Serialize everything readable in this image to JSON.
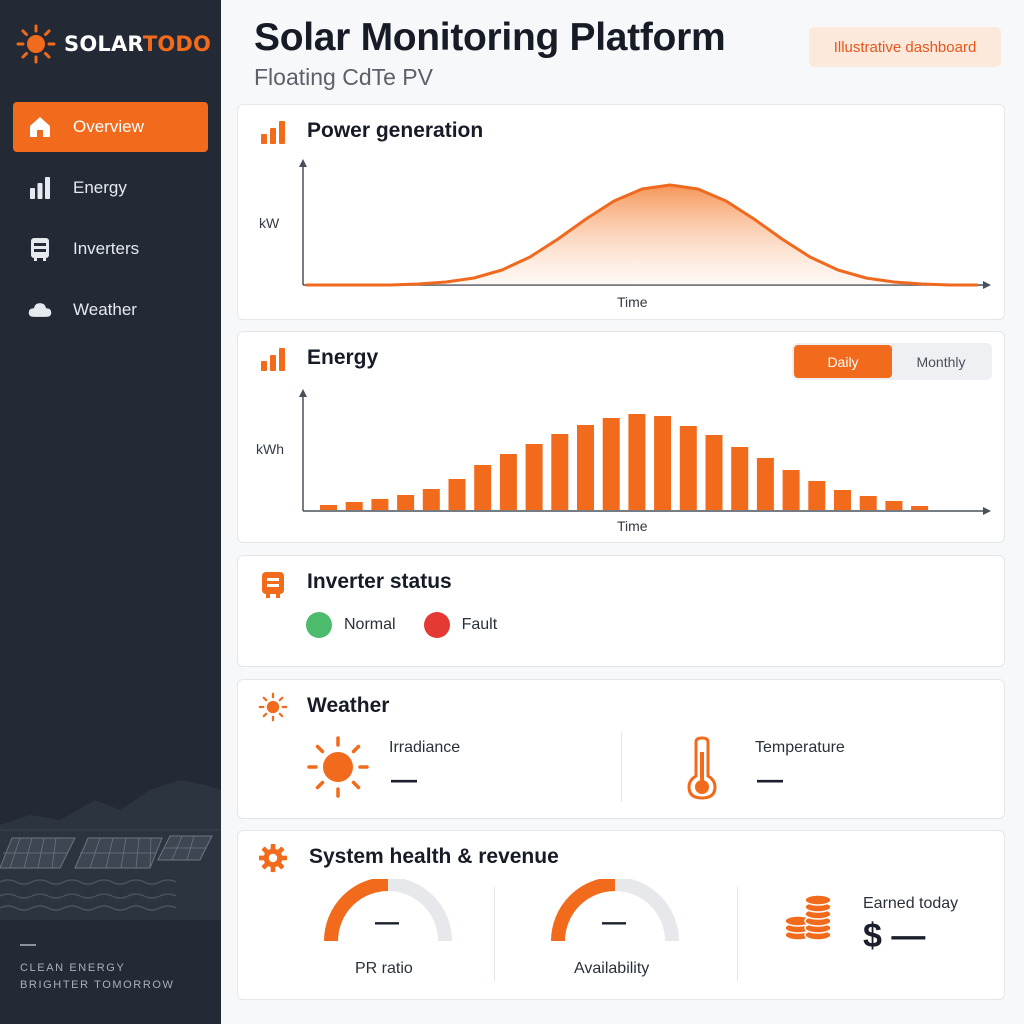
{
  "app": {
    "brand_left": "SOLAR",
    "brand_right": "TODO",
    "accent_color": "#f26a1b"
  },
  "sidebar": {
    "items": [
      {
        "label": "Overview",
        "icon": "home-icon",
        "active": true
      },
      {
        "label": "Energy",
        "icon": "bar-chart-icon",
        "active": false
      },
      {
        "label": "Inverters",
        "icon": "inverter-icon",
        "active": false
      },
      {
        "label": "Weather",
        "icon": "cloud-icon",
        "active": false
      }
    ],
    "tagline_line1": "CLEAN ENERGY",
    "tagline_line2": "BRIGHTER TOMORROW"
  },
  "header": {
    "title": "Solar Monitoring Platform",
    "subtitle": "Floating CdTe PV",
    "badge": "Illustrative dashboard"
  },
  "power": {
    "title": "Power generation",
    "ylabel": "kW",
    "xlabel": "Time"
  },
  "energy": {
    "title": "Energy",
    "ylabel": "kWh",
    "xlabel": "Time",
    "toggle": {
      "daily": "Daily",
      "monthly": "Monthly",
      "selected": "Daily"
    }
  },
  "inverter": {
    "title": "Inverter status",
    "normal_label": "Normal",
    "fault_label": "Fault",
    "normal_color": "#4cbb6c",
    "fault_color": "#e53935"
  },
  "weather": {
    "title": "Weather",
    "irradiance_label": "Irradiance",
    "irradiance_value": "—",
    "temperature_label": "Temperature",
    "temperature_value": "—"
  },
  "health": {
    "title": "System health & revenue",
    "pr_label": "PR ratio",
    "pr_value": "—",
    "pr_fraction": 0.5,
    "availability_label": "Availability",
    "availability_value": "—",
    "availability_fraction": 0.5,
    "earned_label": "Earned today",
    "earned_value": "$ —"
  },
  "chart_data": [
    {
      "type": "area",
      "title": "",
      "xlabel": "Time",
      "ylabel": "kW",
      "series": [
        {
          "values": [
            0,
            0,
            0,
            0,
            0.01,
            0.03,
            0.07,
            0.15,
            0.28,
            0.46,
            0.66,
            0.84,
            0.96,
            1.0,
            0.96,
            0.84,
            0.66,
            0.46,
            0.28,
            0.15,
            0.07,
            0.03,
            0.01,
            0,
            0
          ]
        }
      ],
      "grid": false,
      "legend": "none"
    },
    {
      "type": "bar",
      "title": "",
      "xlabel": "Time",
      "ylabel": "kWh",
      "values": [
        0.05,
        0.08,
        0.11,
        0.15,
        0.21,
        0.31,
        0.45,
        0.56,
        0.66,
        0.76,
        0.85,
        0.92,
        0.96,
        0.94,
        0.84,
        0.75,
        0.63,
        0.52,
        0.4,
        0.29,
        0.2,
        0.14,
        0.09,
        0.04
      ],
      "grid": false,
      "legend": "none"
    }
  ]
}
